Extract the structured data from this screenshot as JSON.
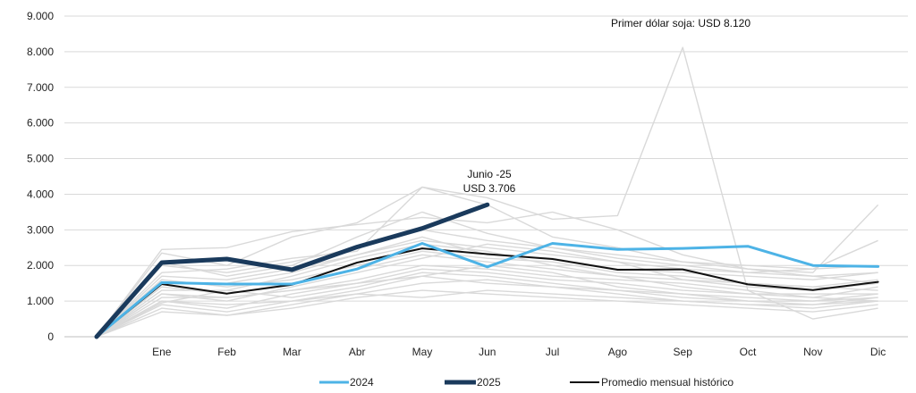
{
  "chart_data": {
    "type": "line",
    "title": "",
    "xlabel": "",
    "ylabel": "",
    "categories": [
      "",
      "Ene",
      "Feb",
      "Mar",
      "Abr",
      "May",
      "Jun",
      "Jul",
      "Ago",
      "Sep",
      "Oct",
      "Nov",
      "Dic"
    ],
    "y_ticks": [
      "0",
      "1.000",
      "2.000",
      "3.000",
      "4.000",
      "5.000",
      "6.000",
      "7.000",
      "8.000",
      "9.000"
    ],
    "ylim": [
      0,
      9000
    ],
    "grid": "horizontal",
    "legend_position": "bottom",
    "colors": {
      "y2024": "#4db3e6",
      "y2025": "#1a3a5c",
      "promedio": "#111111",
      "historical": "#d9d9d9"
    },
    "series": [
      {
        "name": "2024",
        "values": [
          0,
          1520,
          1480,
          1480,
          1900,
          2620,
          1960,
          2620,
          2450,
          2480,
          2540,
          2000,
          1970
        ]
      },
      {
        "name": "2025",
        "values": [
          0,
          2080,
          2180,
          1880,
          2520,
          3040,
          3706,
          null,
          null,
          null,
          null,
          null,
          null
        ]
      },
      {
        "name": "Promedio mensual histórico",
        "values": [
          0,
          1480,
          1210,
          1460,
          2080,
          2480,
          2320,
          2180,
          1880,
          1890,
          1470,
          1310,
          1540
        ]
      }
    ],
    "historical_series": [
      [
        0,
        2450,
        2500,
        2950,
        3150,
        3350,
        3200,
        3500,
        3000,
        2300,
        1900,
        1700,
        1500
      ],
      [
        0,
        2350,
        2000,
        2800,
        3200,
        4200,
        3900,
        3300,
        3400,
        8120,
        1300,
        1100,
        1000
      ],
      [
        0,
        1800,
        1900,
        2200,
        2400,
        4200,
        3700,
        2800,
        2500,
        2100,
        1900,
        1800,
        3700
      ],
      [
        0,
        2100,
        1700,
        2000,
        2800,
        3500,
        2900,
        2500,
        2200,
        2000,
        1800,
        1900,
        2700
      ],
      [
        0,
        1500,
        1500,
        1800,
        2300,
        2800,
        2300,
        2200,
        1900,
        1800,
        1700,
        1600,
        1800
      ],
      [
        0,
        1200,
        1000,
        1400,
        1800,
        2200,
        2600,
        2400,
        2100,
        1600,
        1500,
        1400,
        1300
      ],
      [
        0,
        1000,
        800,
        1200,
        1500,
        1900,
        1800,
        1600,
        1500,
        1300,
        1200,
        1100,
        1400
      ],
      [
        0,
        900,
        700,
        1000,
        1300,
        1700,
        2000,
        1800,
        1400,
        1200,
        1000,
        900,
        1100
      ],
      [
        0,
        800,
        600,
        900,
        1200,
        1500,
        1600,
        1400,
        1200,
        1000,
        900,
        800,
        1000
      ],
      [
        0,
        1300,
        1300,
        1700,
        2200,
        2600,
        2400,
        2000,
        1700,
        1400,
        1200,
        1200,
        1200
      ],
      [
        0,
        700,
        600,
        800,
        1100,
        1300,
        1200,
        1100,
        1000,
        900,
        800,
        700,
        900
      ],
      [
        0,
        1100,
        1100,
        1300,
        1600,
        2000,
        1900,
        1700,
        1600,
        1500,
        1300,
        500,
        800
      ],
      [
        0,
        1600,
        1400,
        1600,
        2000,
        2400,
        2200,
        2100,
        1800,
        1700,
        1500,
        1400,
        1600
      ],
      [
        0,
        950,
        1300,
        1100,
        1400,
        1800,
        1700,
        1500,
        1300,
        1100,
        1000,
        1000,
        1200
      ],
      [
        0,
        1400,
        1200,
        1500,
        1900,
        2300,
        2100,
        1900,
        1700,
        1600,
        1400,
        1300,
        1500
      ],
      [
        0,
        1000,
        900,
        1000,
        1200,
        1100,
        1300,
        1200,
        1100,
        1000,
        900,
        900,
        1000
      ],
      [
        0,
        1200,
        1100,
        1300,
        1500,
        1700,
        1500,
        1400,
        1300,
        1200,
        1100,
        1000,
        1100
      ],
      [
        0,
        2000,
        1800,
        2100,
        2500,
        3000,
        2700,
        2500,
        2300,
        2100,
        2000,
        1900,
        2000
      ],
      [
        0,
        1700,
        1600,
        1900,
        2300,
        2700,
        2500,
        2300,
        2100,
        1900,
        1800,
        1700,
        1800
      ]
    ],
    "annotations": [
      {
        "text": "Primer dólar soja: USD 8.120"
      },
      {
        "lines": [
          "Junio -25",
          "USD 3.706"
        ]
      }
    ]
  }
}
